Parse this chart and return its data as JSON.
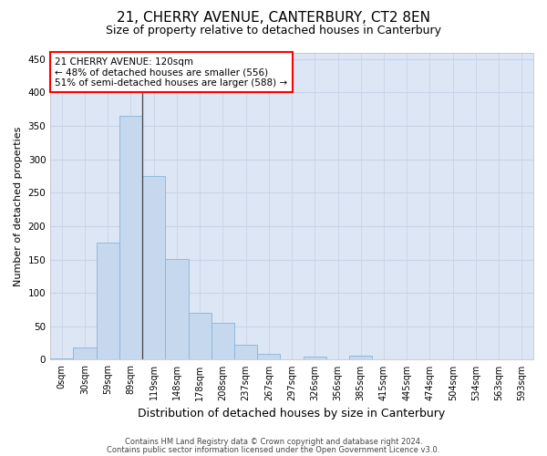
{
  "title_line1": "21, CHERRY AVENUE, CANTERBURY, CT2 8EN",
  "title_line2": "Size of property relative to detached houses in Canterbury",
  "xlabel": "Distribution of detached houses by size in Canterbury",
  "ylabel": "Number of detached properties",
  "bar_color": "#c5d8ee",
  "bar_edge_color": "#8ab4d8",
  "categories": [
    "0sqm",
    "30sqm",
    "59sqm",
    "89sqm",
    "119sqm",
    "148sqm",
    "178sqm",
    "208sqm",
    "237sqm",
    "267sqm",
    "297sqm",
    "326sqm",
    "356sqm",
    "385sqm",
    "415sqm",
    "445sqm",
    "474sqm",
    "504sqm",
    "534sqm",
    "563sqm",
    "593sqm"
  ],
  "values": [
    2,
    18,
    176,
    365,
    275,
    151,
    70,
    55,
    23,
    9,
    0,
    5,
    0,
    6,
    0,
    0,
    1,
    0,
    0,
    0,
    1
  ],
  "ylim": [
    0,
    460
  ],
  "yticks": [
    0,
    50,
    100,
    150,
    200,
    250,
    300,
    350,
    400,
    450
  ],
  "property_label": "21 CHERRY AVENUE: 120sqm",
  "smaller_pct": 48,
  "smaller_count": 556,
  "larger_label": "51% of semi-detached houses are larger (588)",
  "vline_x": 3.5,
  "annotation_box_color": "white",
  "annotation_box_edge": "red",
  "grid_color": "#c8d4e8",
  "bg_color": "#dce6f4",
  "vline_color": "#444444",
  "footer1": "Contains HM Land Registry data © Crown copyright and database right 2024.",
  "footer2": "Contains public sector information licensed under the Open Government Licence v3.0.",
  "title1_fontsize": 11,
  "title2_fontsize": 9,
  "ylabel_fontsize": 8,
  "xlabel_fontsize": 9,
  "tick_fontsize": 7,
  "ann_fontsize": 7.5,
  "footer_fontsize": 6
}
